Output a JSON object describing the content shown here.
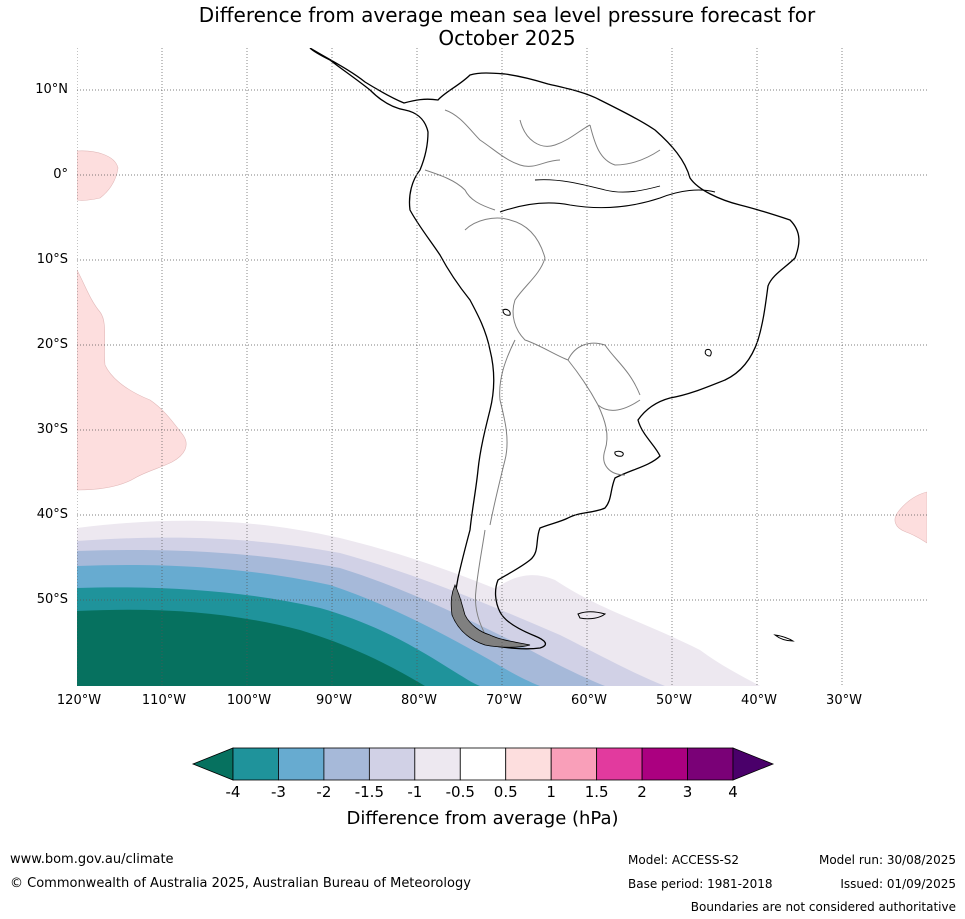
{
  "title_line1": "Difference from average mean sea level pressure forecast for",
  "title_line2": "October 2025",
  "lat_labels": [
    "10°N",
    "0°",
    "10°S",
    "20°S",
    "30°S",
    "40°S",
    "50°S"
  ],
  "lon_labels": [
    "120°W",
    "110°W",
    "100°W",
    "90°W",
    "80°W",
    "70°W",
    "60°W",
    "50°W",
    "40°W",
    "30°W"
  ],
  "colorbar": {
    "title": "Difference from average (hPa)",
    "ticks": [
      "-4",
      "-3",
      "-2",
      "-1.5",
      "-1",
      "-0.5",
      "0.5",
      "1",
      "1.5",
      "2",
      "3",
      "4"
    ],
    "colors": [
      "#06715f",
      "#1f939b",
      "#67abd0",
      "#a6b9d9",
      "#d1d1e6",
      "#ede8f0",
      "#ffffff",
      "#fddede",
      "#f99fb9",
      "#e23a9e",
      "#ab0080",
      "#7a0177",
      "#4a006a"
    ]
  },
  "footer": {
    "website": "www.bom.gov.au/climate",
    "copyright": "© Commonwealth of Australia 2025, Australian Bureau of Meteorology",
    "model": "Model: ACCESS-S2",
    "base_period": "Base period: 1981-2018",
    "model_run": "Model run: 30/08/2025",
    "issued": "Issued: 01/09/2025",
    "disclaimer": "Boundaries are not considered authoritative"
  }
}
